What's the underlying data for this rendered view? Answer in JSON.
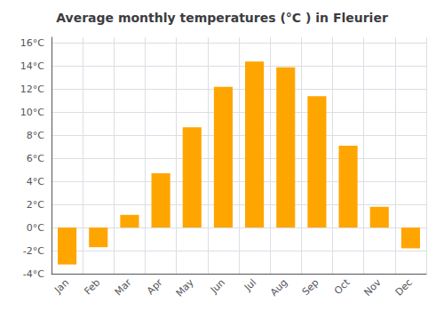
{
  "chart_data": {
    "type": "bar",
    "title": "Average monthly temperatures (°C ) in Fleurier",
    "categories": [
      "Jan",
      "Feb",
      "Mar",
      "Apr",
      "May",
      "Jun",
      "Jul",
      "Aug",
      "Sep",
      "Oct",
      "Nov",
      "Dec"
    ],
    "values": [
      -3.2,
      -1.7,
      1.1,
      4.7,
      8.7,
      12.2,
      14.4,
      13.9,
      11.4,
      7.1,
      1.8,
      -1.8
    ],
    "color": "#FFA500",
    "ylim": [
      -4,
      16.5
    ],
    "yticks": [
      {
        "value": -4,
        "label": "-4°C"
      },
      {
        "value": -2,
        "label": "-2°C"
      },
      {
        "value": 0,
        "label": "0°C"
      },
      {
        "value": 2,
        "label": "2°C"
      },
      {
        "value": 4,
        "label": "4°C"
      },
      {
        "value": 6,
        "label": "6°C"
      },
      {
        "value": 8,
        "label": "8°C"
      },
      {
        "value": 10,
        "label": "10°C"
      },
      {
        "value": 12,
        "label": "12°C"
      },
      {
        "value": 14,
        "label": "14°C"
      },
      {
        "value": 16,
        "label": "16°C"
      }
    ],
    "grid": true
  }
}
